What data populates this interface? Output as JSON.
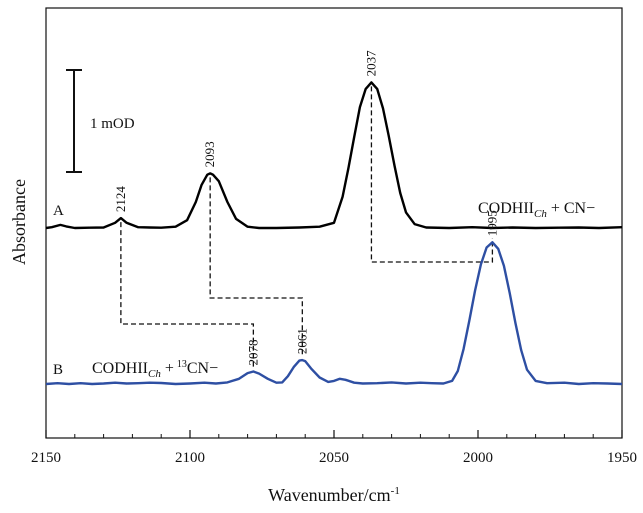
{
  "chart_data": {
    "type": "line",
    "title": "",
    "xlabel": "Wavenumber/cm",
    "xlabel_sup": "-1",
    "ylabel": "Absorbance",
    "xlim": [
      2150,
      1950
    ],
    "x_reversed": true,
    "x_ticks": [
      2150,
      2100,
      2050,
      2000,
      1950
    ],
    "y_ticks": [],
    "grid": false,
    "scale_bar_label": "1 mOD",
    "series": [
      {
        "id": "A",
        "letter": "A",
        "label_main": "CODHII",
        "label_sub": "Ch",
        "label_sup": "",
        "label_rest": " + CN−",
        "color": "#000000",
        "peaks": [
          {
            "x": 2124,
            "label": "2124"
          },
          {
            "x": 2093,
            "label": "2093"
          },
          {
            "x": 2037,
            "label": "2037"
          }
        ],
        "points": [
          [
            2150,
            0
          ],
          [
            2148,
            0.03
          ],
          [
            2145,
            0.12
          ],
          [
            2143,
            0.06
          ],
          [
            2140,
            0
          ],
          [
            2135,
            0.01
          ],
          [
            2130,
            0.02
          ],
          [
            2126,
            0.2
          ],
          [
            2124,
            0.38
          ],
          [
            2122,
            0.2
          ],
          [
            2118,
            0.03
          ],
          [
            2114,
            0.02
          ],
          [
            2110,
            0.01
          ],
          [
            2105,
            0.05
          ],
          [
            2101,
            0.3
          ],
          [
            2098,
            1.0
          ],
          [
            2096,
            1.65
          ],
          [
            2094,
            2.05
          ],
          [
            2093,
            2.1
          ],
          [
            2092,
            2.05
          ],
          [
            2090,
            1.8
          ],
          [
            2087,
            1.0
          ],
          [
            2084,
            0.35
          ],
          [
            2080,
            0.05
          ],
          [
            2076,
            0
          ],
          [
            2070,
            0
          ],
          [
            2062,
            0.02
          ],
          [
            2055,
            0.05
          ],
          [
            2050,
            0.2
          ],
          [
            2047,
            1.2
          ],
          [
            2045,
            2.3
          ],
          [
            2043,
            3.5
          ],
          [
            2041,
            4.65
          ],
          [
            2039,
            5.35
          ],
          [
            2037,
            5.6
          ],
          [
            2035,
            5.35
          ],
          [
            2033,
            4.6
          ],
          [
            2031,
            3.55
          ],
          [
            2029,
            2.4
          ],
          [
            2027,
            1.35
          ],
          [
            2025,
            0.6
          ],
          [
            2022,
            0.15
          ],
          [
            2018,
            0.02
          ],
          [
            2010,
            0
          ],
          [
            2002,
            0.03
          ],
          [
            1995,
            0
          ],
          [
            1988,
            0.02
          ],
          [
            1980,
            0
          ],
          [
            1972,
            0.01
          ],
          [
            1965,
            0.02
          ],
          [
            1958,
            0
          ],
          [
            1950,
            0.03
          ]
        ]
      },
      {
        "id": "B",
        "letter": "B",
        "label_main": "CODHII",
        "label_sub": "Ch",
        "label_sup": "13",
        "label_rest": "CN−",
        "color": "#2e4fa3",
        "peaks": [
          {
            "x": 2078,
            "label": "2078"
          },
          {
            "x": 2061,
            "label": "2061"
          },
          {
            "x": 1995,
            "label": "1995"
          }
        ],
        "points": [
          [
            2150,
            0
          ],
          [
            2146,
            0.03
          ],
          [
            2142,
            0
          ],
          [
            2138,
            0.03
          ],
          [
            2134,
            0
          ],
          [
            2130,
            0.02
          ],
          [
            2126,
            0.05
          ],
          [
            2122,
            0.02
          ],
          [
            2118,
            0.03
          ],
          [
            2114,
            0.05
          ],
          [
            2110,
            0.04
          ],
          [
            2105,
            0
          ],
          [
            2100,
            0.02
          ],
          [
            2095,
            0.05
          ],
          [
            2091,
            0.02
          ],
          [
            2087,
            0.06
          ],
          [
            2083,
            0.2
          ],
          [
            2080,
            0.42
          ],
          [
            2078,
            0.48
          ],
          [
            2076,
            0.4
          ],
          [
            2073,
            0.2
          ],
          [
            2070,
            0.05
          ],
          [
            2068,
            0.06
          ],
          [
            2066,
            0.3
          ],
          [
            2064,
            0.65
          ],
          [
            2062,
            0.9
          ],
          [
            2061,
            0.92
          ],
          [
            2060,
            0.88
          ],
          [
            2058,
            0.6
          ],
          [
            2055,
            0.25
          ],
          [
            2052,
            0.08
          ],
          [
            2050,
            0.12
          ],
          [
            2048,
            0.2
          ],
          [
            2046,
            0.16
          ],
          [
            2043,
            0.05
          ],
          [
            2040,
            0.02
          ],
          [
            2035,
            0.03
          ],
          [
            2030,
            0.06
          ],
          [
            2025,
            0.02
          ],
          [
            2020,
            0.05
          ],
          [
            2016,
            0.03
          ],
          [
            2012,
            0.02
          ],
          [
            2009,
            0.12
          ],
          [
            2007,
            0.5
          ],
          [
            2005,
            1.35
          ],
          [
            2003,
            2.45
          ],
          [
            2001,
            3.6
          ],
          [
            1999,
            4.6
          ],
          [
            1997,
            5.25
          ],
          [
            1995,
            5.45
          ],
          [
            1993,
            5.2
          ],
          [
            1991,
            4.55
          ],
          [
            1989,
            3.5
          ],
          [
            1987,
            2.35
          ],
          [
            1985,
            1.3
          ],
          [
            1983,
            0.55
          ],
          [
            1980,
            0.12
          ],
          [
            1976,
            0.03
          ],
          [
            1970,
            0.05
          ],
          [
            1965,
            0
          ],
          [
            1960,
            0.03
          ],
          [
            1955,
            0.02
          ],
          [
            1950,
            0
          ]
        ]
      }
    ],
    "correlations": [
      {
        "from": 2124,
        "to": 2078
      },
      {
        "from": 2093,
        "to": 2061
      },
      {
        "from": 2037,
        "to": 1995
      }
    ]
  }
}
